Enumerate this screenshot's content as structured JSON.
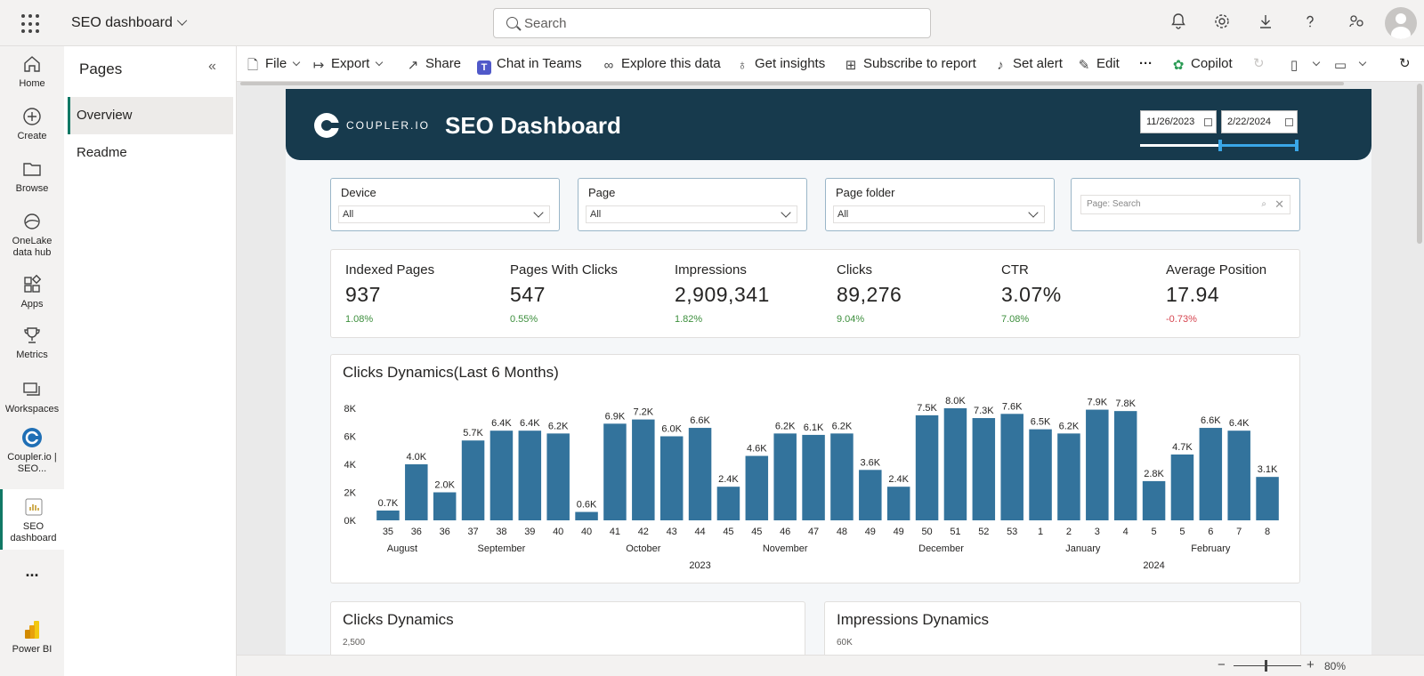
{
  "app": {
    "title": "SEO dashboard"
  },
  "search": {
    "placeholder": "Search"
  },
  "rail": [
    {
      "label": "Home"
    },
    {
      "label": "Create"
    },
    {
      "label": "Browse"
    },
    {
      "label": "OneLake data hub"
    },
    {
      "label": "Apps"
    },
    {
      "label": "Metrics"
    },
    {
      "label": "Workspaces"
    },
    {
      "label": "Coupler.io | SEO..."
    },
    {
      "label": "SEO dashboard"
    },
    {
      "label": "..."
    },
    {
      "label": "Power BI"
    }
  ],
  "pages_panel": {
    "title": "Pages",
    "items": [
      {
        "label": "Overview"
      },
      {
        "label": "Readme"
      }
    ]
  },
  "toolbar": {
    "file": "File",
    "export": "Export",
    "share": "Share",
    "chat_in_teams": "Chat in Teams",
    "explore": "Explore this data",
    "insights": "Get insights",
    "subscribe": "Subscribe to report",
    "alert": "Set alert",
    "edit": "Edit",
    "more": "···",
    "copilot": "Copilot"
  },
  "report": {
    "logo_text": "COUPLER.IO",
    "title": "SEO Dashboard",
    "date_from": "11/26/2023",
    "date_to": "2/22/2024",
    "filters": [
      {
        "label": "Device",
        "value": "All"
      },
      {
        "label": "Page",
        "value": "All"
      },
      {
        "label": "Page folder",
        "value": "All"
      }
    ],
    "page_search_placeholder": "Page: Search",
    "kpis": [
      {
        "label": "Indexed Pages",
        "value": "937",
        "delta": "1.08%"
      },
      {
        "label": "Pages With Clicks",
        "value": "547",
        "delta": "0.55%"
      },
      {
        "label": "Impressions",
        "value": "2,909,341",
        "delta": "1.82%"
      },
      {
        "label": "Clicks",
        "value": "89,276",
        "delta": "9.04%"
      },
      {
        "label": "CTR",
        "value": "3.07%",
        "delta": "7.08%"
      },
      {
        "label": "Average Position",
        "value": "17.94",
        "delta": "-0.73%"
      }
    ],
    "small_cards": [
      {
        "title": "Clicks Dynamics",
        "first_tick": "2,500"
      },
      {
        "title": "Impressions Dynamics",
        "first_tick": "60K"
      }
    ]
  },
  "chart_data": {
    "type": "bar",
    "title": "Clicks Dynamics(Last 6 Months)",
    "y_ticks": [
      "0K",
      "2K",
      "4K",
      "6K",
      "8K"
    ],
    "ylim": [
      0,
      8000
    ],
    "categories": [
      "35",
      "36",
      "36",
      "37",
      "38",
      "39",
      "40",
      "40",
      "41",
      "42",
      "43",
      "44",
      "45",
      "45",
      "46",
      "47",
      "48",
      "49",
      "49",
      "50",
      "51",
      "52",
      "53",
      "1",
      "2",
      "3",
      "4",
      "5",
      "5",
      "6",
      "7",
      "8"
    ],
    "values": [
      700,
      4000,
      2000,
      5700,
      6400,
      6400,
      6200,
      600,
      6900,
      7200,
      6000,
      6600,
      2400,
      4600,
      6200,
      6100,
      6200,
      3600,
      2400,
      7500,
      8000,
      7300,
      7600,
      6500,
      6200,
      7900,
      7800,
      2800,
      4700,
      6600,
      6400,
      3100
    ],
    "data_labels": [
      "0.7K",
      "4.0K",
      "2.0K",
      "5.7K",
      "6.4K",
      "6.4K",
      "6.2K",
      "0.6K",
      "6.9K",
      "7.2K",
      "6.0K",
      "6.6K",
      "2.4K",
      "4.6K",
      "6.2K",
      "6.1K",
      "6.2K",
      "3.6K",
      "2.4K",
      "7.5K",
      "8.0K",
      "7.3K",
      "7.6K",
      "6.5K",
      "6.2K",
      "7.9K",
      "7.8K",
      "2.8K",
      "4.7K",
      "6.6K",
      "6.4K",
      "3.1K"
    ],
    "months": [
      {
        "label": "August",
        "first": 0,
        "last": 1
      },
      {
        "label": "September",
        "first": 2,
        "last": 6
      },
      {
        "label": "October",
        "first": 7,
        "last": 11
      },
      {
        "label": "November",
        "first": 12,
        "last": 16
      },
      {
        "label": "December",
        "first": 17,
        "last": 22
      },
      {
        "label": "January",
        "first": 23,
        "last": 26
      },
      {
        "label": "February",
        "first": 27,
        "last": 31
      }
    ],
    "years": [
      {
        "label": "2023",
        "first": 0,
        "last": 22
      },
      {
        "label": "2024",
        "first": 23,
        "last": 31
      }
    ],
    "bar_color": "#33739c",
    "grid": false
  },
  "statusbar": {
    "zoom": "80%"
  },
  "colors": {
    "banner": "#173a4d",
    "accent": "#117865",
    "positive": "#3d8f3d",
    "negative": "#d64550"
  }
}
